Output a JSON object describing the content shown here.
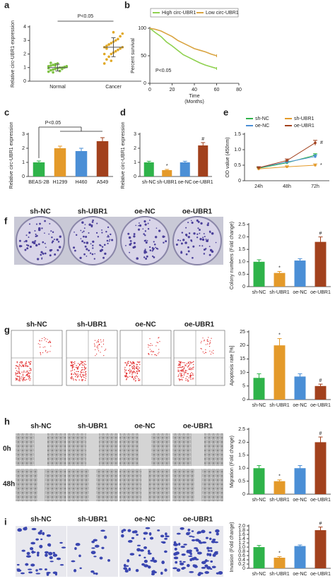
{
  "panel_letters": [
    "a",
    "b",
    "c",
    "d",
    "e",
    "f",
    "g",
    "h",
    "i"
  ],
  "image_panels": {
    "f": {
      "labels": [
        "sh-NC",
        "sh-UBR1",
        "oe-NC",
        "oe-UBR1"
      ]
    },
    "g": {
      "labels": [
        "sh-NC",
        "sh-UBR1",
        "oe-NC",
        "oe-UBR1"
      ]
    },
    "h": {
      "labels": [
        "sh-NC",
        "sh-UBR1",
        "oe-NC",
        "oe-UBR1"
      ],
      "rows": [
        "0h",
        "48h"
      ]
    },
    "i": {
      "labels": [
        "sh-NC",
        "sh-UBR1",
        "oe-NC",
        "oe-UBR1"
      ]
    }
  },
  "chart_data": [
    {
      "type": "strip",
      "ylabel": "Relative circ-UBR1 expression",
      "categories": [
        "Normal",
        "Cancer"
      ],
      "points": [
        [
          0.7,
          0.8,
          0.85,
          0.9,
          0.95,
          1.0,
          1.0,
          1.05,
          1.1,
          1.1,
          1.15,
          1.2,
          1.25,
          1.3,
          0.75,
          0.9,
          1.0,
          1.05,
          0.95,
          1.35,
          0.65,
          1.15
        ],
        [
          1.3,
          1.6,
          1.8,
          2.0,
          2.1,
          2.2,
          2.3,
          2.4,
          2.5,
          2.5,
          2.6,
          2.7,
          2.8,
          2.9,
          3.0,
          3.1,
          3.3,
          3.5,
          2.0,
          2.4,
          2.7,
          1.5,
          3.6
        ]
      ],
      "means": [
        1.0,
        2.5
      ],
      "errors": [
        0.25,
        0.7
      ],
      "colors": [
        "#7dc242",
        "#e0a825"
      ],
      "ylim": [
        0,
        4
      ],
      "yticks": [
        0,
        1,
        2,
        3,
        4
      ],
      "annotation": "P<0.05"
    },
    {
      "type": "line",
      "ylabel": "Percent survival",
      "xlabel": [
        "Time",
        "(Months)"
      ],
      "x": [
        0,
        5,
        10,
        15,
        20,
        25,
        30,
        35,
        40,
        45,
        50,
        55,
        60
      ],
      "series": [
        {
          "name": "High circ-UBR1",
          "color": "#8fd14f",
          "values": [
            100,
            92,
            85,
            75,
            68,
            60,
            52,
            47,
            42,
            37,
            33,
            30,
            27
          ]
        },
        {
          "name": "Low circ-UBR1",
          "color": "#d9a441",
          "values": [
            100,
            98,
            95,
            90,
            85,
            78,
            73,
            68,
            63,
            60,
            57,
            53,
            50
          ]
        }
      ],
      "xlim": [
        0,
        80
      ],
      "xticks": [
        0,
        20,
        40,
        60,
        80
      ],
      "ylim": [
        0,
        100
      ],
      "yticks": [
        0,
        50,
        100
      ],
      "annotation": "P<0.05",
      "legend": "top"
    },
    {
      "type": "bar",
      "ylabel": "Relative circ-UBR1 expression",
      "categories": [
        "BEAS-2B",
        "H1299",
        "H460",
        "A549"
      ],
      "values": [
        1.0,
        2.0,
        1.8,
        2.5
      ],
      "errors": [
        0.1,
        0.15,
        0.2,
        0.25
      ],
      "colors": [
        "#2fb34a",
        "#e49a2a",
        "#4b8fd6",
        "#a2411d"
      ],
      "ylim": [
        0,
        3
      ],
      "yticks": [
        0,
        1,
        2,
        3
      ],
      "annotation": "P<0.05"
    },
    {
      "type": "bar",
      "ylabel": "Relative circ-UBR1 expression",
      "categories": [
        "sh-NC",
        "sh-UBR1",
        "oe-NC",
        "oe-UBR1"
      ],
      "values": [
        1.0,
        0.45,
        1.0,
        2.2
      ],
      "errors": [
        0.08,
        0.05,
        0.08,
        0.2
      ],
      "annotations": [
        null,
        "*",
        null,
        "#"
      ],
      "colors": [
        "#2fb34a",
        "#e49a2a",
        "#4b8fd6",
        "#a2411d"
      ],
      "ylim": [
        0,
        3
      ],
      "yticks": [
        0,
        1,
        2,
        3
      ]
    },
    {
      "type": "line",
      "ylabel": "OD value (450nm)",
      "categories": [
        "24h",
        "48h",
        "72h"
      ],
      "series": [
        {
          "name": "sh-NC",
          "color": "#2fb34a",
          "values": [
            0.4,
            0.58,
            0.82
          ],
          "errors": [
            0.03,
            0.04,
            0.05
          ],
          "annotations": [
            null,
            null,
            null
          ]
        },
        {
          "name": "sh-UBR1",
          "color": "#e49a2a",
          "values": [
            0.38,
            0.45,
            0.5
          ],
          "errors": [
            0.03,
            0.03,
            0.04
          ],
          "annotations": [
            null,
            null,
            "*"
          ]
        },
        {
          "name": "oe-NC",
          "color": "#4b8fd6",
          "values": [
            0.42,
            0.6,
            0.78
          ],
          "errors": [
            0.03,
            0.04,
            0.05
          ],
          "annotations": [
            null,
            null,
            null
          ]
        },
        {
          "name": "oe-UBR1",
          "color": "#a2411d",
          "values": [
            0.42,
            0.65,
            1.22
          ],
          "errors": [
            0.03,
            0.05,
            0.08
          ],
          "annotations": [
            null,
            null,
            "#"
          ]
        }
      ],
      "ylim": [
        0,
        1.5
      ],
      "yticks": [
        0,
        0.5,
        {
          "value": 1,
          "label": "1.0"
        },
        1.5
      ],
      "legend": "top"
    },
    {
      "type": "bar",
      "ylabel": "Colony numbers (Fold change)",
      "categories": [
        "sh-NC",
        "sh-UBR1",
        "oe-NC",
        "oe-UBR1"
      ],
      "values": [
        1.0,
        0.55,
        1.05,
        1.8
      ],
      "errors": [
        0.08,
        0.06,
        0.07,
        0.2
      ],
      "annotations": [
        null,
        "*",
        null,
        "#"
      ],
      "colors": [
        "#2fb34a",
        "#e49a2a",
        "#4b8fd6",
        "#a2411d"
      ],
      "ylim": [
        0,
        2.5
      ],
      "yticks": [
        0,
        0.5,
        {
          "value": 1,
          "label": "1.0"
        },
        1.5,
        {
          "value": 2,
          "label": "2.0"
        },
        2.5
      ]
    },
    {
      "type": "bar",
      "ylabel": "Apoptosis rate [%]",
      "categories": [
        "sh-NC",
        "sh-UBR1",
        "oe-NC",
        "oe-UBR1"
      ],
      "values": [
        8,
        20,
        8.5,
        5
      ],
      "errors": [
        1.5,
        2.5,
        1,
        0.7
      ],
      "annotations": [
        null,
        "*",
        null,
        "#"
      ],
      "colors": [
        "#2fb34a",
        "#e49a2a",
        "#4b8fd6",
        "#a2411d"
      ],
      "ylim": [
        0,
        25
      ],
      "yticks": [
        0,
        5,
        10,
        15,
        20,
        25
      ]
    },
    {
      "type": "bar",
      "ylabel": "Migration (Fold change)",
      "categories": [
        "sh-NC",
        "sh-UBR1",
        "oe-NC",
        "oe-UBR1"
      ],
      "values": [
        1.0,
        0.5,
        1.0,
        2.0
      ],
      "errors": [
        0.1,
        0.05,
        0.1,
        0.2
      ],
      "annotations": [
        null,
        "*",
        null,
        "#"
      ],
      "colors": [
        "#2fb34a",
        "#e49a2a",
        "#4b8fd6",
        "#a2411d"
      ],
      "ylim": [
        0,
        2.5
      ],
      "yticks": [
        0,
        0.5,
        {
          "value": 1,
          "label": "1.0"
        },
        1.5,
        {
          "value": 2,
          "label": "2.0"
        },
        2.5
      ]
    },
    {
      "type": "bar",
      "ylabel": "Invasion (Fold change)",
      "categories": [
        "sh-NC",
        "sh-UBR1",
        "oe-NC",
        "oe-UBR1"
      ],
      "values": [
        1.0,
        0.5,
        1.05,
        1.8
      ],
      "errors": [
        0.08,
        0.05,
        0.05,
        0.15
      ],
      "annotations": [
        null,
        "*",
        null,
        "#"
      ],
      "colors": [
        "#2fb34a",
        "#e49a2a",
        "#4b8fd6",
        "#a2411d"
      ],
      "ylim": [
        0,
        2
      ],
      "yticks": [
        0,
        0.2,
        0.4,
        0.6,
        0.8,
        {
          "value": 1,
          "label": "1.0"
        },
        1.2,
        1.4,
        1.6,
        1.8,
        {
          "value": 2,
          "label": "2.0"
        }
      ]
    }
  ]
}
